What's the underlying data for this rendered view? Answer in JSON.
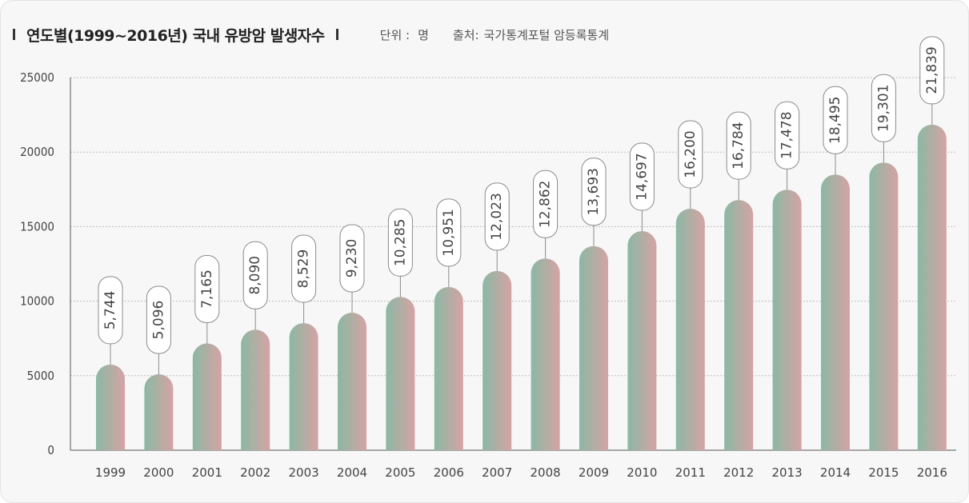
{
  "header": {
    "title": "연도별(1999~2016년) 국내 유방암 발생자수",
    "unit_label": "단위 :",
    "unit_value": "명",
    "source_label": "출처:",
    "source_value": "국가통계포털 암등록통계"
  },
  "colors": {
    "bar_start": "#8bb8a4",
    "bar_end": "#d6a3a4",
    "grid": "#bfbfbf",
    "callout_border": "#8c8c8c"
  },
  "chart_data": {
    "type": "bar",
    "title": "연도별(1999~2016년) 국내 유방암 발생자수",
    "categories": [
      "1999",
      "2000",
      "2001",
      "2002",
      "2003",
      "2004",
      "2005",
      "2006",
      "2007",
      "2008",
      "2009",
      "2010",
      "2011",
      "2012",
      "2013",
      "2014",
      "2015",
      "2016"
    ],
    "values": [
      5744,
      5096,
      7165,
      8090,
      8529,
      9230,
      10285,
      10951,
      12023,
      12862,
      13693,
      14697,
      16200,
      16784,
      17478,
      18495,
      19301,
      21839
    ],
    "value_labels": [
      "5,744",
      "5,096",
      "7,165",
      "8,090",
      "8,529",
      "9,230",
      "10,285",
      "10,951",
      "12,023",
      "12,862",
      "13,693",
      "14,697",
      "16,200",
      "16,784",
      "17,478",
      "18,495",
      "19,301",
      "21,839"
    ],
    "y_ticks": [
      "0",
      "5000",
      "10000",
      "15000",
      "20000",
      "25000"
    ],
    "ylim": [
      0,
      25000
    ],
    "grid": true
  }
}
